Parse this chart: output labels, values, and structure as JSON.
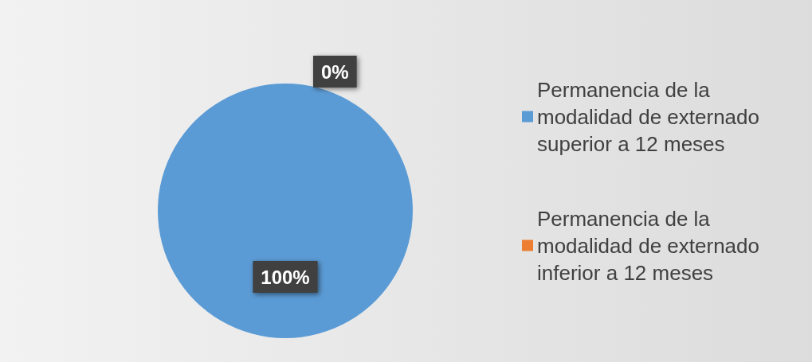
{
  "chart_data": {
    "type": "pie",
    "categories": [
      "Permanencia de la modalidad de externado superior a 12 meses",
      "Permanencia de la modalidad de externado inferior a 12 meses"
    ],
    "values": [
      100,
      0
    ],
    "colors": [
      "#5b9bd5",
      "#ed7d31"
    ],
    "value_labels": [
      "100%",
      "0%"
    ],
    "legend": "right"
  }
}
